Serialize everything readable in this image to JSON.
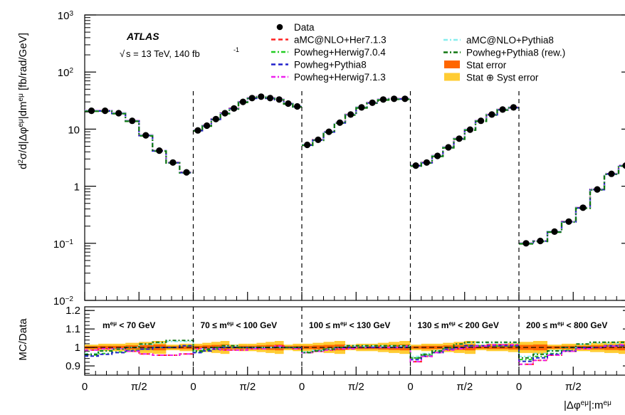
{
  "chart_data": {
    "type": "line",
    "experiment": "ATLAS",
    "energy_label": "s = 13 TeV, 140 fb",
    "energy_sqrt": "√",
    "lumi_exp": "-1",
    "ylabel": "d²σ/d|Δφ^{eμ}|dm^{eμ} [fb/rad/GeV]",
    "ylabel_parts": [
      "d",
      "2",
      "σ/d|Δφ",
      "eμ",
      "|dm",
      "eμ",
      " [fb/rad/GeV]"
    ],
    "ratio_ylabel": "MC/Data",
    "xlabel_parts": [
      "|Δφ",
      "eμ",
      "|:m",
      "eμ"
    ],
    "yscale": "log",
    "ylim": [
      0.01,
      1000
    ],
    "y_ticks": [
      {
        "v": 0.01,
        "base": "10",
        "exp": "−2"
      },
      {
        "v": 0.1,
        "base": "10",
        "exp": "−1"
      },
      {
        "v": 1,
        "base": "1",
        "exp": ""
      },
      {
        "v": 10,
        "base": "10",
        "exp": ""
      },
      {
        "v": 100,
        "base": "10",
        "exp": "2"
      },
      {
        "v": 1000,
        "base": "10",
        "exp": "3"
      }
    ],
    "ratio_ylim": [
      0.85,
      1.22
    ],
    "ratio_ticks": [
      "0.9",
      "1",
      "1.1",
      "1.2"
    ],
    "x_tick_labels": [
      "0",
      "π/2",
      "0",
      "π/2",
      "0",
      "π/2",
      "0",
      "π/2",
      "0",
      "π/2"
    ],
    "mass_bins": [
      {
        "parts": [
          "m",
          "eμ",
          " < 70 GeV"
        ],
        "data": [
          21,
          21,
          19,
          14,
          7.8,
          4.2,
          2.6,
          1.75
        ]
      },
      {
        "parts": [
          "70 ≤ m",
          "eμ",
          " < 100 GeV"
        ],
        "data": [
          9.5,
          11.5,
          15,
          19,
          23,
          30,
          35,
          37,
          35,
          33,
          28,
          25
        ]
      },
      {
        "parts": [
          "100 ≤ m",
          "eμ",
          " < 130 GeV"
        ],
        "data": [
          5.3,
          6.5,
          9,
          13,
          18,
          24,
          29,
          33,
          34,
          34
        ]
      },
      {
        "parts": [
          "130 ≤ m",
          "eμ",
          " < 200 GeV"
        ],
        "data": [
          2.3,
          2.6,
          3.4,
          4.8,
          6.8,
          9.8,
          14,
          18,
          22,
          24
        ]
      },
      {
        "parts": [
          "200 ≤ m",
          "eμ",
          " < 800 GeV"
        ],
        "data": [
          0.1,
          0.11,
          0.16,
          0.24,
          0.42,
          0.88,
          1.65,
          2.3
        ]
      }
    ],
    "legend": [
      {
        "label": "Data",
        "style": "marker",
        "color": "#000000"
      },
      {
        "label": "aMC@NLO+Her7.1.3",
        "style": "dashed",
        "color": "#ff2222"
      },
      {
        "label": "Powheg+Herwig7.0.4",
        "style": "dashdot",
        "color": "#22cc22"
      },
      {
        "label": "Powheg+Pythia8",
        "style": "dashed",
        "color": "#2222cc"
      },
      {
        "label": "Powheg+Herwig7.1.3",
        "style": "dashdot",
        "color": "#ee22ee"
      },
      {
        "label": "aMC@NLO+Pythia8",
        "style": "dashdot",
        "color": "#88eeee"
      },
      {
        "label": "Powheg+Pythia8 (rew.)",
        "style": "dashdot",
        "color": "#117711"
      },
      {
        "label": "Stat error",
        "style": "box",
        "color": "#ff6600"
      },
      {
        "label": "Stat ⊕ Syst error",
        "style": "box",
        "color": "#ffcc33"
      }
    ],
    "ratio_deviation": {
      "aMC@NLO+Her7.1.3": [
        0.98,
        0.99,
        0.99,
        0.97,
        0.95,
        0.94,
        0.94,
        0.95,
        0.99,
        0.99,
        0.99,
        0.98,
        0.98,
        0.98,
        0.99,
        0.99,
        1.0,
        1.01,
        1.0,
        0.99,
        0.96,
        0.97,
        0.98,
        0.99,
        0.99,
        1.0,
        1.0,
        1.0,
        1.0,
        1.01,
        0.89,
        0.93,
        0.96,
        0.98,
        0.99,
        1.0,
        1.01,
        1.02,
        1.02,
        1.02,
        0.87,
        0.9,
        0.94,
        0.97,
        0.99,
        1.0,
        1.01,
        1.02
      ],
      "Powheg+Pythia8": [
        0.95,
        0.96,
        0.97,
        0.98,
        0.99,
        1.0,
        1.0,
        1.01,
        0.97,
        0.98,
        0.99,
        1.0,
        1.0,
        1.0,
        1.0,
        1.0,
        1.0,
        1.0,
        1.0,
        1.0,
        0.97,
        0.98,
        0.99,
        1.0,
        1.0,
        1.0,
        1.0,
        1.0,
        1.0,
        1.0,
        0.93,
        0.95,
        0.97,
        0.99,
        1.0,
        1.01,
        1.01,
        1.01,
        1.01,
        1.01,
        0.92,
        0.94,
        0.96,
        0.98,
        1.0,
        1.0,
        1.01,
        1.01
      ],
      "aMC@NLO+Pythia8": [
        0.96,
        0.98,
        0.99,
        1.0,
        1.02,
        1.03,
        1.04,
        1.04,
        0.98,
        0.99,
        1.0,
        1.01,
        1.01,
        1.0,
        1.0,
        1.0,
        1.0,
        1.0,
        1.0,
        1.0,
        0.97,
        0.98,
        0.99,
        1.0,
        1.01,
        1.01,
        1.01,
        1.01,
        1.01,
        1.01,
        0.94,
        0.96,
        0.98,
        1.0,
        1.02,
        1.03,
        1.03,
        1.03,
        1.03,
        1.03,
        0.94,
        0.96,
        0.98,
        1.0,
        1.02,
        1.03,
        1.03,
        1.03
      ]
    }
  }
}
